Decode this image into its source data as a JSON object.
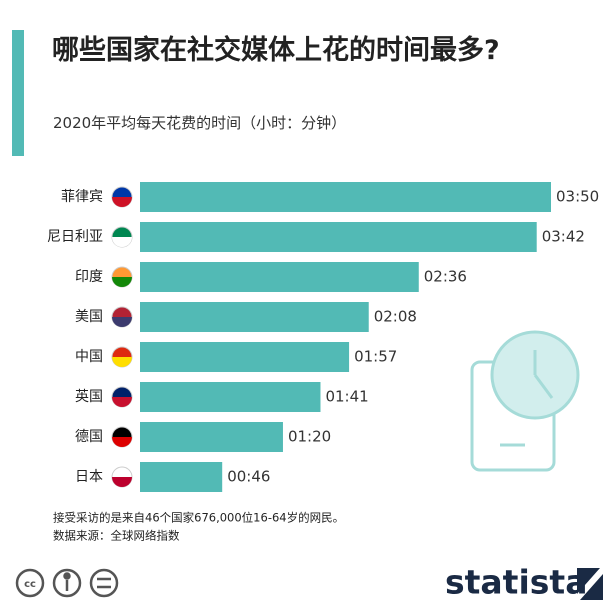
{
  "chart_data": {
    "type": "bar",
    "orientation": "horizontal",
    "title": "哪些国家在社交媒体上花的时间最多?",
    "subtitle": "2020年平均每天花费的时间（小时：分钟）",
    "categories": [
      "菲律宾",
      "尼日利亚",
      "印度",
      "美国",
      "中国",
      "英国",
      "德国",
      "日本"
    ],
    "values": [
      230,
      222,
      156,
      128,
      117,
      101,
      80,
      46
    ],
    "value_labels": [
      "03:50",
      "03:42",
      "02:36",
      "02:08",
      "01:57",
      "01:41",
      "01:20",
      "00:46"
    ],
    "color": "#52bab5",
    "note": "接受采访的是来自46个国家676,000位16-64岁的网民。",
    "source": "数据来源：全球网络指数",
    "brand": "statista"
  }
}
